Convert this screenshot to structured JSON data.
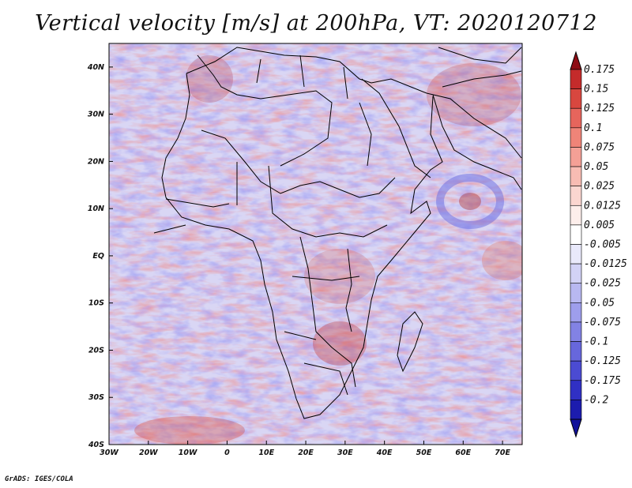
{
  "title": "Vertical velocity [m/s] at 200hPa, VT: 2020120712",
  "credit": "GrADS: IGES/COLA",
  "map": {
    "lon_range": [
      -30,
      75
    ],
    "lat_range": [
      -40,
      45
    ],
    "lat_ticks": [
      {
        "value": 40,
        "label": "40N"
      },
      {
        "value": 30,
        "label": "30N"
      },
      {
        "value": 20,
        "label": "20N"
      },
      {
        "value": 10,
        "label": "10N"
      },
      {
        "value": 0,
        "label": "EQ"
      },
      {
        "value": -10,
        "label": "10S"
      },
      {
        "value": -20,
        "label": "20S"
      },
      {
        "value": -30,
        "label": "30S"
      },
      {
        "value": -40,
        "label": "40S"
      }
    ],
    "lon_ticks": [
      {
        "value": -30,
        "label": "30W"
      },
      {
        "value": -20,
        "label": "20W"
      },
      {
        "value": -10,
        "label": "10W"
      },
      {
        "value": 0,
        "label": "0"
      },
      {
        "value": 10,
        "label": "10E"
      },
      {
        "value": 20,
        "label": "20E"
      },
      {
        "value": 30,
        "label": "30E"
      },
      {
        "value": 40,
        "label": "40E"
      },
      {
        "value": 50,
        "label": "50E"
      },
      {
        "value": 60,
        "label": "60E"
      },
      {
        "value": 70,
        "label": "70E"
      }
    ],
    "colorbar": {
      "labels": [
        "0.175",
        "0.15",
        "0.125",
        "0.1",
        "0.075",
        "0.05",
        "0.025",
        "0.0125",
        "0.005",
        "-0.005",
        "-0.0125",
        "-0.025",
        "-0.05",
        "-0.075",
        "-0.1",
        "-0.125",
        "-0.175",
        "-0.2"
      ],
      "colors": [
        "#b0161e",
        "#c42b2b",
        "#d8473f",
        "#e6655c",
        "#ef8478",
        "#f4a096",
        "#f8bcb3",
        "#fbd6d0",
        "#fdeeeb",
        "#ffffff",
        "#e9e9fb",
        "#d2d2f6",
        "#b8b8f1",
        "#9e9eec",
        "#8282e4",
        "#6767dc",
        "#4b4bd2",
        "#3030c4",
        "#1c1cae"
      ],
      "top_color": "#8e0c14",
      "bottom_color": "#12129a"
    }
  }
}
